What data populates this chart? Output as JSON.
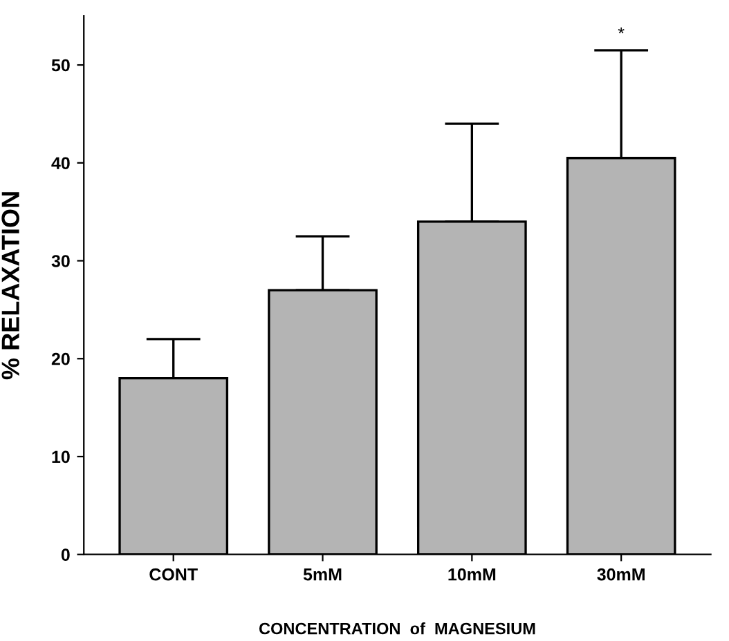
{
  "chart_data": {
    "type": "bar",
    "xlabel": "CONCENTRATION  of  MAGNESIUM",
    "ylabel": "% RELAXATION",
    "categories": [
      "CONT",
      "5mM",
      "10mM",
      "30mM"
    ],
    "values": [
      18,
      27,
      34,
      40.5
    ],
    "errors": [
      [
        18,
        22
      ],
      [
        27,
        32.5
      ],
      [
        34,
        44
      ],
      [
        40.5,
        51.5
      ]
    ],
    "color": "#b4b4b4",
    "ylim": [
      0,
      55
    ],
    "yticks": [
      0,
      10,
      20,
      30,
      40,
      50
    ],
    "annotations": [
      "*"
    ],
    "grid": false
  }
}
